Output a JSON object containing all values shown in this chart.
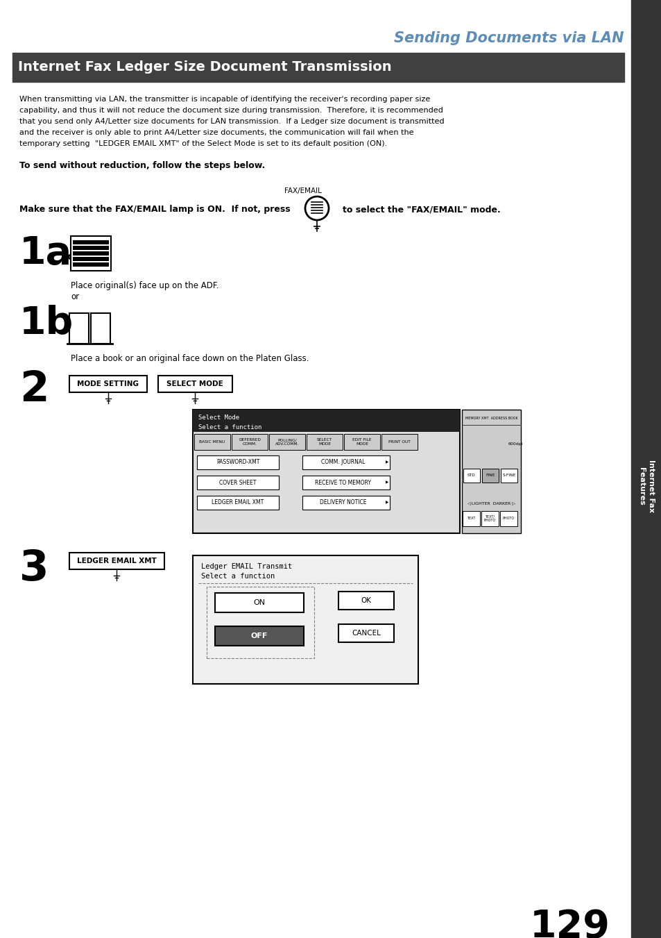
{
  "title_section": "Sending Documents via LAN",
  "header_title": "Internet Fax Ledger Size Document Transmission",
  "header_bg": "#404040",
  "header_text_color": "#ffffff",
  "title_color": "#5b8db8",
  "body_lines": [
    "When transmitting via LAN, the transmitter is incapable of identifying the receiver's recording paper size",
    "capability, and thus it will not reduce the document size during transmission.  Therefore, it is recommended",
    "that you send only A4/Letter size documents for LAN transmission.  If a Ledger size document is transmitted",
    "and the receiver is only able to print A4/Letter size documents, the communication will fail when the",
    "temporary setting  \"LEDGER EMAIL XMT\" of the Select Mode is set to its default position (ON)."
  ],
  "bold_instruction": "To send without reduction, follow the steps below.",
  "fax_label": "FAX/EMAIL",
  "make_sure_text": "Make sure that the FAX/EMAIL lamp is ON.  If not, press",
  "make_sure_text2": "to select the \"FAX/EMAIL\" mode.",
  "step1a_label": "1a",
  "step1a_text": "Place original(s) face up on the ADF.",
  "step1a_text2": "or",
  "step1b_label": "1b",
  "step1b_text": "Place a book or an original face down on the Platen Glass.",
  "step2_label": "2",
  "step2_btn1": "MODE SETTING",
  "step2_btn2": "SELECT MODE",
  "step3_label": "3",
  "step3_btn": "LEDGER EMAIL XMT",
  "sidebar_text": "Internet Fax\nFeatures",
  "sidebar_bg": "#333333",
  "sidebar_text_color": "#ffffff",
  "page_number": "129",
  "bg_color": "#ffffff",
  "text_color": "#000000",
  "lcd_tabs": [
    "BASIC MENU",
    "DEFERRED\nCOMM.",
    "POLLING/\nADV.COMM.",
    "SELECT\nMODE",
    "EDIT FILE\nMODE",
    "PRINT OUT"
  ],
  "lcd_btns_left": [
    "PASSWORD-XMT",
    "COVER SHEET",
    "LEDGER EMAIL XMT"
  ],
  "lcd_btns_right": [
    "COMM. JOURNAL",
    "RECEIVE TO MEMORY",
    "DELIVERY NOTICE"
  ],
  "lcd3_on": "ON",
  "lcd3_off": "OFF",
  "lcd3_ok": "OK",
  "lcd3_cancel": "CANCEL",
  "lcd3_title1": "Ledger EMAIL Transmit",
  "lcd3_title2": "Select a function"
}
